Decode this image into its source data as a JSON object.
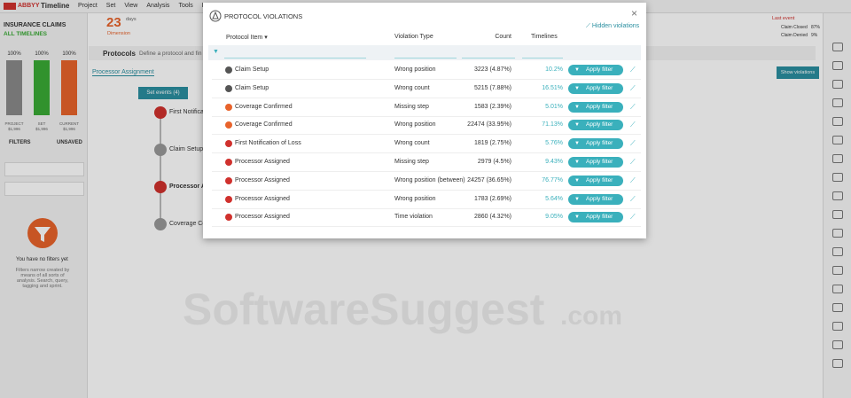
{
  "app": {
    "brand": "ABBYY",
    "product": "Timeline",
    "menu": [
      "Project",
      "Set",
      "View",
      "Analysis",
      "Tools",
      "H"
    ]
  },
  "left_panel": {
    "title": "INSURANCE CLAIMS",
    "subtitle": "ALL TIMELINES",
    "bars": [
      {
        "percent": "100%",
        "label": "PROJECT",
        "value": "$1,996"
      },
      {
        "percent": "100%",
        "label": "SET",
        "value": "$1,996"
      },
      {
        "percent": "100%",
        "label": "CURRENT",
        "value": "$1,996"
      }
    ],
    "filters": "FILTERS",
    "unsaved": "UNSAVED",
    "empty_title": "You have no filters yet",
    "empty_text": "Filters narrow created by means of all sorts of analysis. Search, query, tagging and sprint."
  },
  "header_stat": {
    "value": "23",
    "unit": "days",
    "label": "Dimension"
  },
  "background": {
    "protocols": "Protocols",
    "protocols_hint": "Define a protocol and fin",
    "selected_protocol": "Processor Assignment",
    "set_events": "Set events (4)",
    "nodes": [
      "First Notificati",
      "Claim Setup",
      "Processor As",
      "Coverage Co"
    ],
    "show_violations": "Show violations",
    "last_event": "Last event",
    "last_events": [
      {
        "name": "Claim Closed",
        "share": "87%"
      },
      {
        "name": "Claim Denied",
        "share": "9%"
      }
    ]
  },
  "dialog": {
    "title": "PROTOCOL VIOLATIONS",
    "hidden_link": "Hidden violations",
    "columns": [
      "Protocol Item",
      "Violation Type",
      "Count",
      "Timelines"
    ],
    "rows": [
      {
        "item": "Claim Setup",
        "type": "Wrong position",
        "count": "3223 (4.87%)",
        "timelines": "10.2%",
        "action": "Apply filter"
      },
      {
        "item": "Claim Setup",
        "type": "Wrong count",
        "count": "5215 (7.88%)",
        "timelines": "16.51%",
        "action": "Apply filter"
      },
      {
        "item": "Coverage Confirmed",
        "type": "Missing step",
        "count": "1583 (2.39%)",
        "timelines": "5.01%",
        "action": "Apply filter"
      },
      {
        "item": "Coverage Confirmed",
        "type": "Wrong position",
        "count": "22474 (33.95%)",
        "timelines": "71.13%",
        "action": "Apply filter"
      },
      {
        "item": "First Notification of Loss",
        "type": "Wrong count",
        "count": "1819 (2.75%)",
        "timelines": "5.76%",
        "action": "Apply filter"
      },
      {
        "item": "Processor Assigned",
        "type": "Missing step",
        "count": "2979 (4.5%)",
        "timelines": "9.43%",
        "action": "Apply filter"
      },
      {
        "item": "Processor Assigned",
        "type": "Wrong position (between)",
        "count": "24257 (36.65%)",
        "timelines": "76.77%",
        "action": "Apply filter"
      },
      {
        "item": "Processor Assigned",
        "type": "Wrong position",
        "count": "1783 (2.69%)",
        "timelines": "5.64%",
        "action": "Apply filter"
      },
      {
        "item": "Processor Assigned",
        "type": "Time violation",
        "count": "2860 (4.32%)",
        "timelines": "9.05%",
        "action": "Apply filter"
      }
    ]
  },
  "watermark": {
    "main": "SoftwareSuggest",
    "suffix": ".com"
  }
}
